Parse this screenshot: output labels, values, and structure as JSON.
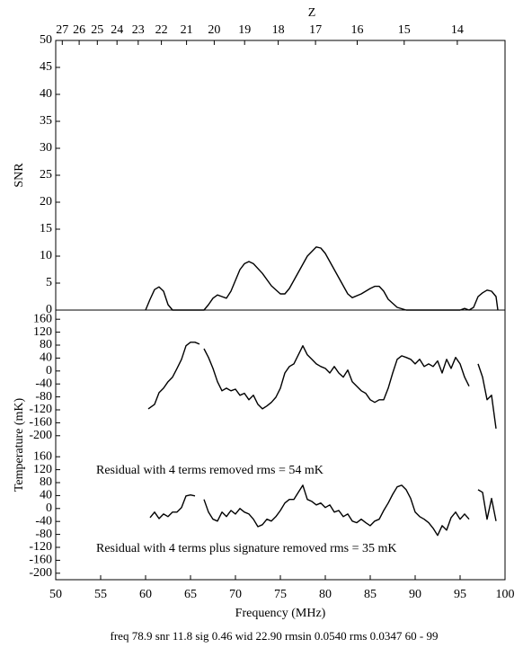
{
  "chart_data": [
    {
      "type": "line",
      "ylabel": "SNR",
      "xlabel": "Frequency (MHz)",
      "x2label": "Z",
      "xlim": [
        50,
        100
      ],
      "xticks": [
        50,
        55,
        60,
        65,
        70,
        75,
        80,
        85,
        90,
        95,
        100
      ],
      "x2ticks": [
        {
          "value": 50.73,
          "label": "27"
        },
        {
          "value": 52.61,
          "label": "26"
        },
        {
          "value": 54.63,
          "label": "25"
        },
        {
          "value": 56.82,
          "label": "24"
        },
        {
          "value": 59.18,
          "label": "23"
        },
        {
          "value": 61.76,
          "label": "22"
        },
        {
          "value": 64.56,
          "label": "21"
        },
        {
          "value": 67.64,
          "label": "20"
        },
        {
          "value": 71.02,
          "label": "19"
        },
        {
          "value": 74.76,
          "label": "18"
        },
        {
          "value": 78.91,
          "label": "17"
        },
        {
          "value": 83.55,
          "label": "16"
        },
        {
          "value": 88.78,
          "label": "15"
        },
        {
          "value": 94.69,
          "label": "14"
        }
      ],
      "ylim": [
        0,
        50
      ],
      "yticks": [
        0,
        5,
        10,
        15,
        20,
        25,
        30,
        35,
        40,
        45,
        50
      ],
      "footer": "freq 78.9 snr 11.8 sig 0.46 wid 22.90 rmsin 0.0540 rms 0.0347 60 - 99",
      "series": [
        {
          "color": "#000000",
          "x": [
            60,
            60.5,
            61,
            61.5,
            62,
            62.5,
            63,
            66.5,
            67,
            67.5,
            68,
            68.5,
            69,
            69.5,
            70,
            70.5,
            71,
            71.5,
            72,
            73,
            74,
            75,
            75.5,
            76,
            77,
            78,
            79,
            79.5,
            80,
            81,
            82,
            82.5,
            83,
            84,
            85,
            85.5,
            86,
            86.5,
            87,
            88,
            89,
            95,
            95.5,
            96,
            96.5,
            97,
            97.5,
            98,
            98.5,
            99,
            99.2
          ],
          "values": [
            0,
            2,
            3.8,
            4.3,
            3.5,
            1,
            0,
            0,
            1,
            2.2,
            2.8,
            2.5,
            2.2,
            3.5,
            5.5,
            7.5,
            8.6,
            9,
            8.6,
            6.8,
            4.5,
            3,
            3,
            4,
            7,
            10,
            11.7,
            11.5,
            10.5,
            7.5,
            4.5,
            3,
            2.3,
            3,
            4,
            4.4,
            4.4,
            3.5,
            2,
            0.5,
            0,
            0,
            0.3,
            0,
            0.5,
            2.5,
            3.2,
            3.7,
            3.5,
            2.5,
            0
          ]
        }
      ]
    },
    {
      "type": "line",
      "ylabel": "Temperature (mK)",
      "ylim": [
        -220,
        180
      ],
      "yticks": [
        160,
        120,
        80,
        40,
        0,
        -40,
        -80,
        -120,
        -160,
        -200
      ],
      "annotation": "Residual with 4 terms removed rms =  54 mK",
      "series": [
        {
          "color": "#000000",
          "x": [
            60.3,
            61,
            61.5,
            62,
            62.5,
            63,
            63.5,
            64,
            64.5,
            65,
            65.5,
            66,
            66.2,
            66.5,
            67,
            67.5,
            68,
            68.5,
            69,
            69.5,
            70,
            70.5,
            71,
            71.5,
            72,
            72.5,
            73,
            73.5,
            74,
            74.5,
            75,
            75.5,
            76,
            76.5,
            77,
            77.5,
            78,
            78.5,
            79,
            79.5,
            80,
            80.5,
            81,
            81.5,
            82,
            82.5,
            83,
            83.5,
            84,
            84.5,
            85,
            85.5,
            86,
            86.5,
            87,
            87.5,
            88,
            88.5,
            89,
            89.5,
            90,
            90.5,
            91,
            91.5,
            92,
            92.5,
            93,
            93.5,
            94,
            94.5,
            95,
            95.5,
            96,
            96.5,
            97,
            97.5,
            98,
            98.5,
            99
          ],
          "values": [
            -117,
            -103,
            -67,
            -53,
            -33,
            -19,
            8,
            36,
            78,
            89,
            89,
            83,
            null,
            69,
            42,
            8,
            -33,
            -61,
            -53,
            -61,
            -56,
            -75,
            -69,
            -89,
            -75,
            -103,
            -117,
            -108,
            -97,
            -81,
            -53,
            -6,
            14,
            22,
            50,
            78,
            50,
            36,
            22,
            14,
            8,
            -6,
            14,
            -6,
            -19,
            3,
            -33,
            -47,
            -61,
            -69,
            -89,
            -97,
            -89,
            -89,
            -53,
            -6,
            36,
            47,
            42,
            36,
            22,
            36,
            14,
            22,
            14,
            31,
            -6,
            36,
            8,
            42,
            22,
            -19,
            -47,
            null,
            22,
            -19,
            -89,
            -75,
            -178
          ]
        }
      ]
    },
    {
      "type": "line",
      "ylim": [
        -220,
        180
      ],
      "yticks": [
        160,
        120,
        80,
        40,
        0,
        -40,
        -80,
        -120,
        -160,
        -200
      ],
      "annotation": "Residual with 4 terms plus signature removed rms =  35 mK",
      "series": [
        {
          "color": "#000000",
          "x": [
            60.5,
            61,
            61.5,
            62,
            62.5,
            63,
            63.5,
            64,
            64.5,
            65,
            65.5,
            66.2,
            66.5,
            67,
            67.5,
            68,
            68.5,
            69,
            69.5,
            70,
            70.5,
            71,
            71.5,
            72,
            72.5,
            73,
            73.5,
            74,
            74.5,
            75,
            75.5,
            76,
            76.5,
            77,
            77.5,
            78,
            78.5,
            79,
            79.5,
            80,
            80.5,
            81,
            81.5,
            82,
            82.5,
            83,
            83.5,
            84,
            84.5,
            85,
            85.5,
            86,
            86.5,
            87,
            87.5,
            88,
            88.5,
            89,
            89.5,
            90,
            90.5,
            91,
            91.5,
            92,
            92.5,
            93,
            93.5,
            94,
            94.5,
            95,
            95.5,
            96,
            96.5,
            97,
            97.5,
            98,
            98.5,
            99
          ],
          "values": [
            -28,
            -11,
            -31,
            -17,
            -25,
            -11,
            -11,
            3,
            39,
            42,
            39,
            null,
            28,
            -11,
            -33,
            -39,
            -11,
            -25,
            -6,
            -17,
            0,
            -11,
            -17,
            -33,
            -56,
            -50,
            -33,
            -39,
            -25,
            -6,
            17,
            28,
            28,
            50,
            72,
            28,
            22,
            11,
            17,
            3,
            11,
            -11,
            -6,
            -25,
            -17,
            -39,
            -44,
            -33,
            -44,
            -53,
            -39,
            -33,
            -6,
            17,
            44,
            67,
            72,
            58,
            31,
            -11,
            -25,
            -33,
            -44,
            -61,
            -83,
            -53,
            -67,
            -28,
            -11,
            -33,
            -17,
            -33,
            null,
            58,
            50,
            -33,
            31,
            -39
          ]
        }
      ]
    }
  ]
}
